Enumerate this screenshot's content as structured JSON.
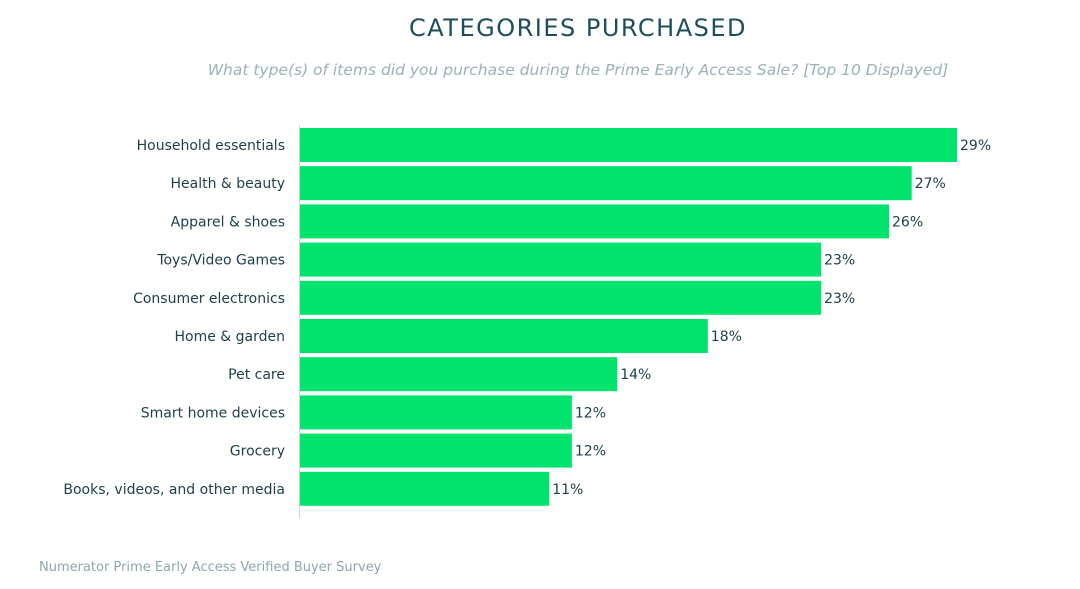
{
  "chart_data": {
    "type": "bar",
    "orientation": "horizontal",
    "title": "CATEGORIES PURCHASED",
    "subtitle": "What type(s) of items did you purchase during the Prime Early Access Sale? [Top 10 Displayed]",
    "categories": [
      "Household essentials",
      "Health & beauty",
      "Apparel & shoes",
      "Toys/Video Games",
      "Consumer electronics",
      "Home & garden",
      "Pet care",
      "Smart home devices",
      "Grocery",
      "Books, videos, and other media"
    ],
    "values": [
      29,
      27,
      26,
      23,
      23,
      18,
      14,
      12,
      12,
      11
    ],
    "value_labels": [
      "29%",
      "27%",
      "26%",
      "23%",
      "23%",
      "18%",
      "14%",
      "12%",
      "12%",
      "11%"
    ],
    "xlim": [
      0,
      29
    ],
    "xlabel": "",
    "ylabel": "",
    "grid": false,
    "bar_color": "#00e46e"
  },
  "source": "Numerator Prime Early Access Verified Buyer Survey",
  "colors": {
    "title": "#1d4e5c",
    "subtitle": "#9cb0b8",
    "label": "#1d3f49",
    "source": "#8fa6ad",
    "axis": "#d4d4d4"
  }
}
